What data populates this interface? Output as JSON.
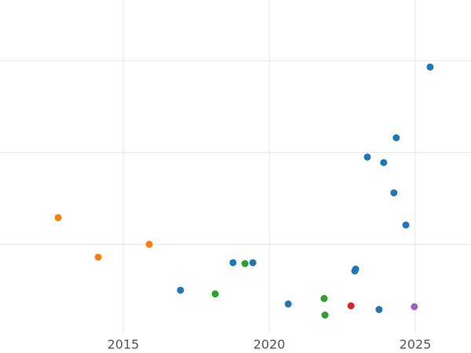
{
  "chart_data": {
    "type": "scatter",
    "xlim": [
      2010.78,
      2026.91
    ],
    "xticks": [
      2015,
      2020,
      2025
    ],
    "ylim": [
      0.03,
      3.66
    ],
    "yticks": [
      1,
      2,
      3
    ],
    "show_ytick_labels": false,
    "grid": true,
    "series": [
      {
        "color": "#1f77b4",
        "x": [
          2025.51,
          2024.35,
          2023.36,
          2023.92,
          2024.27,
          2024.68,
          2018.76,
          2019.44,
          2022.96,
          2022.93,
          2016.96,
          2020.65,
          2023.76
        ],
        "values": [
          2.93,
          2.16,
          1.95,
          1.89,
          1.56,
          1.21,
          0.8,
          0.8,
          0.73,
          0.71,
          0.5,
          0.35,
          0.29
        ]
      },
      {
        "color": "#ff7f0e",
        "x": [
          2012.77,
          2014.14,
          2015.89
        ],
        "values": [
          1.29,
          0.86,
          1.0
        ]
      },
      {
        "color": "#2ca02c",
        "x": [
          2019.17,
          2018.15,
          2021.88,
          2021.91
        ],
        "values": [
          0.79,
          0.46,
          0.41,
          0.23
        ]
      },
      {
        "color": "#d62728",
        "x": [
          2022.8
        ],
        "values": [
          0.33
        ]
      },
      {
        "color": "#9467bd",
        "x": [
          2024.97
        ],
        "values": [
          0.32
        ]
      }
    ]
  }
}
